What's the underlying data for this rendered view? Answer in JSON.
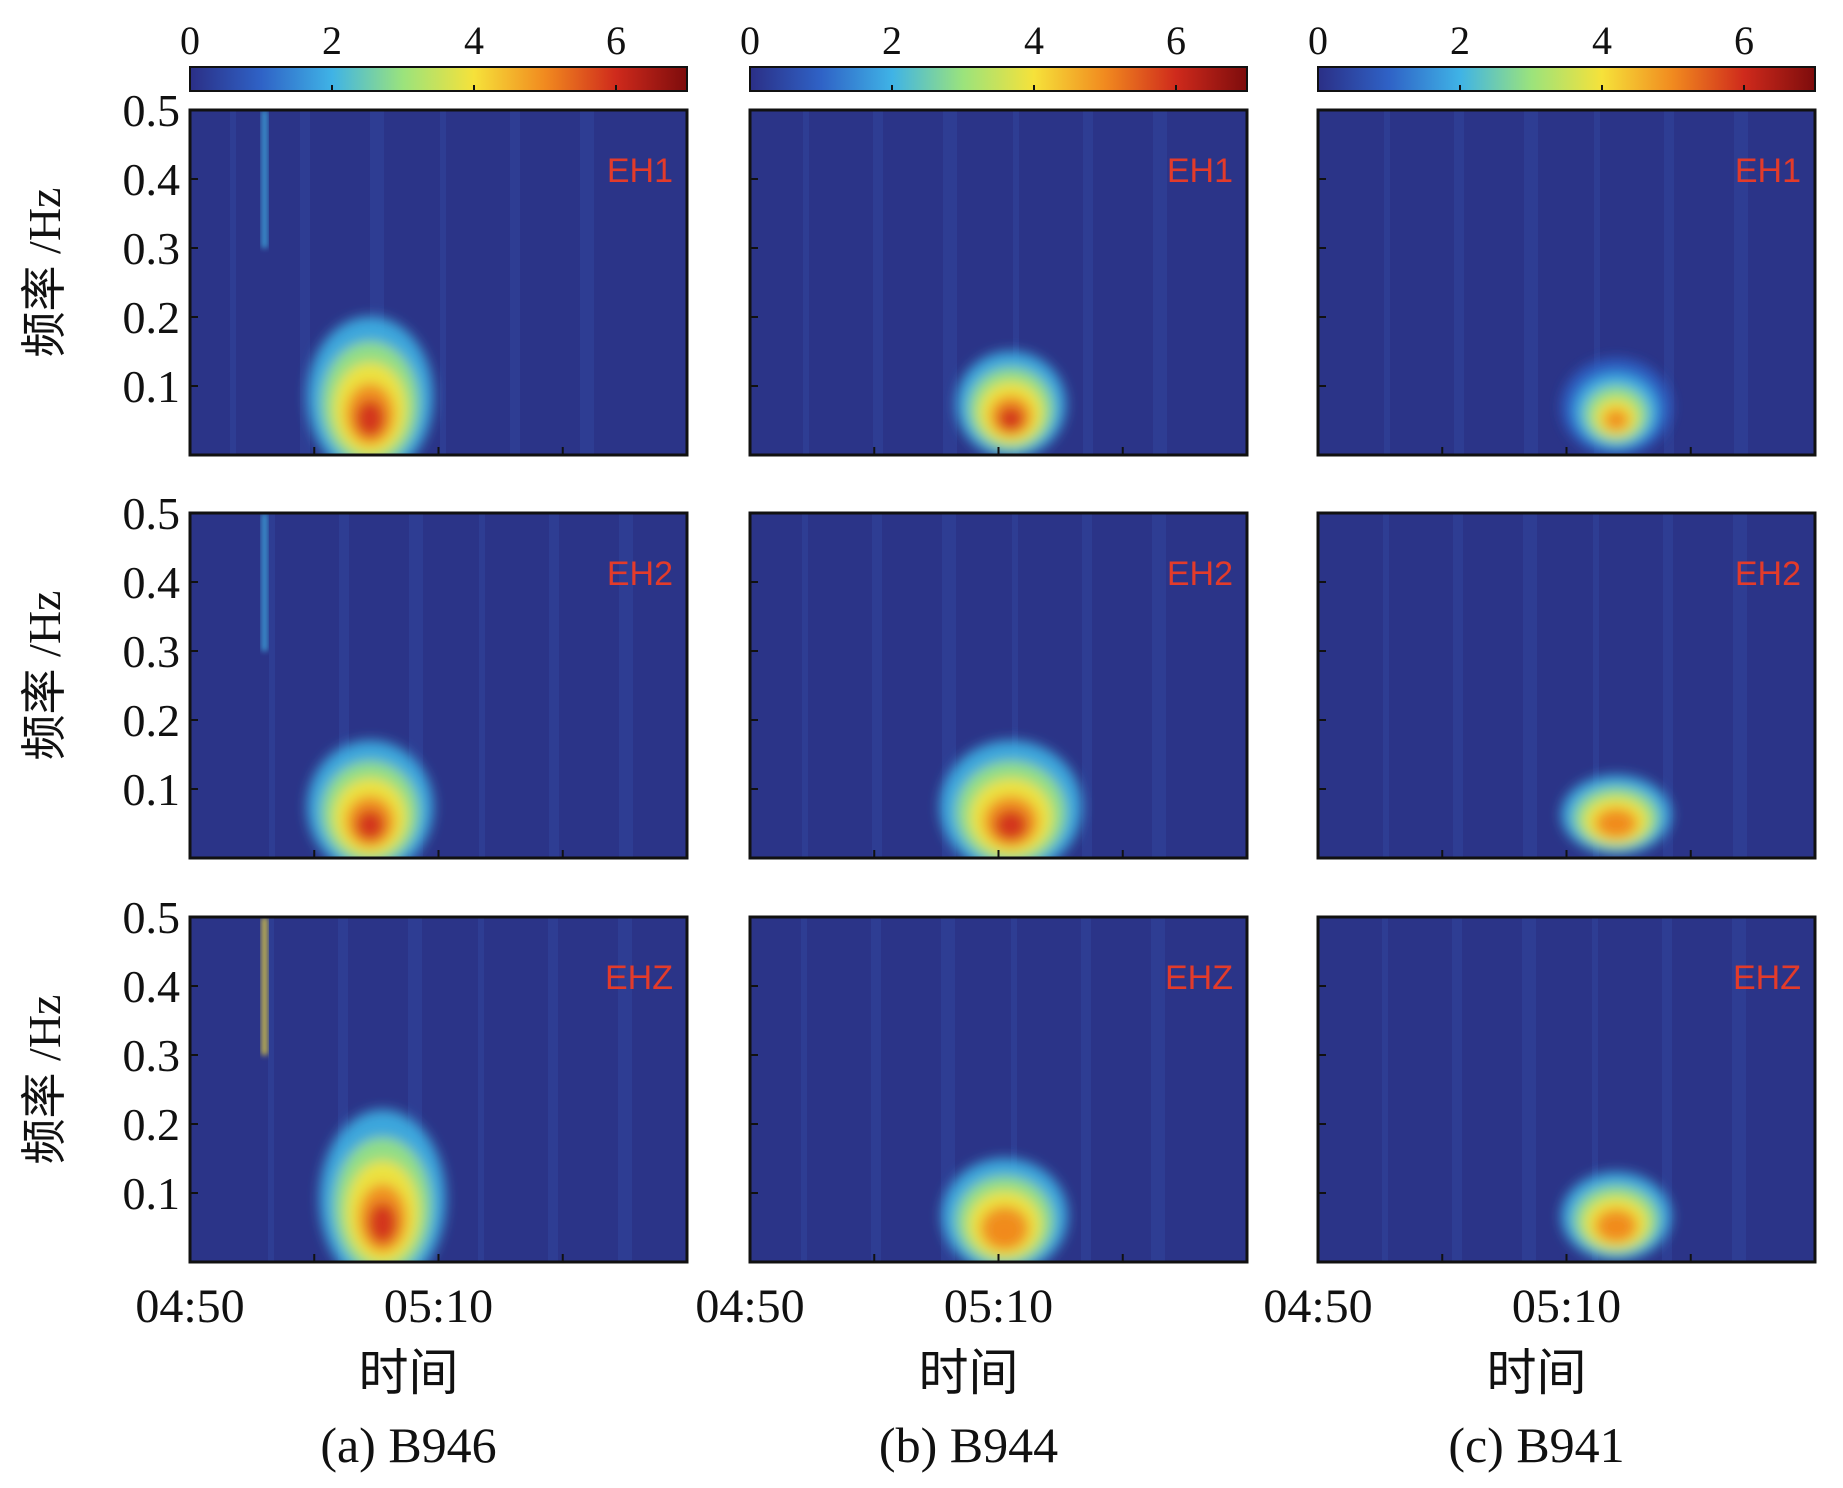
{
  "figure": {
    "columns": [
      {
        "caption": "(a) B946",
        "xlabel": "时间"
      },
      {
        "caption": "(b) B944",
        "xlabel": "时间"
      },
      {
        "caption": "(c) B941",
        "xlabel": "时间"
      }
    ],
    "ylabel": "频率 /Hz",
    "colorbar": {
      "ticks": [
        "0",
        "2",
        "4",
        "6"
      ],
      "range": [
        0,
        7
      ],
      "colormap": "jet",
      "colors": [
        "#2b2f86",
        "#2f62c6",
        "#3fb3e6",
        "#9be37c",
        "#f6e23a",
        "#f18a1f",
        "#cf2a1c",
        "#7d0c0c"
      ]
    },
    "background_color": "#2b3488"
  },
  "chart_data": [
    {
      "type": "heatmap",
      "station": "B946",
      "component": "EH1",
      "x_ticks": [
        "04:50",
        "05:10"
      ],
      "y_ticks": [
        "0.5",
        "0.4",
        "0.3",
        "0.2",
        "0.1"
      ],
      "ylim": [
        0,
        0.5
      ],
      "peak_time": "05:03–05:06",
      "peak_freq_hz": [
        0.03,
        0.18
      ],
      "max_value": 7
    },
    {
      "type": "heatmap",
      "station": "B944",
      "component": "EH1",
      "x_ticks": [
        "04:50",
        "05:10"
      ],
      "y_ticks": [],
      "ylim": [
        0,
        0.5
      ],
      "peak_time": "05:10–05:12",
      "peak_freq_hz": [
        0.04,
        0.13
      ],
      "max_value": 6.5
    },
    {
      "type": "heatmap",
      "station": "B941",
      "component": "EH1",
      "x_ticks": [
        "04:50",
        "05:10"
      ],
      "y_ticks": [],
      "ylim": [
        0,
        0.5
      ],
      "peak_time": "05:13–05:15",
      "peak_freq_hz": [
        0.04,
        0.12
      ],
      "max_value": 5.5
    },
    {
      "type": "heatmap",
      "station": "B946",
      "component": "EH2",
      "x_ticks": [
        "04:50",
        "05:10"
      ],
      "y_ticks": [
        "0.5",
        "0.4",
        "0.3",
        "0.2",
        "0.1"
      ],
      "ylim": [
        0,
        0.5
      ],
      "peak_time": "05:03–05:06",
      "peak_freq_hz": [
        0.03,
        0.15
      ],
      "max_value": 7
    },
    {
      "type": "heatmap",
      "station": "B944",
      "component": "EH2",
      "x_ticks": [
        "04:50",
        "05:10"
      ],
      "y_ticks": [],
      "ylim": [
        0,
        0.5
      ],
      "peak_time": "05:09–05:13",
      "peak_freq_hz": [
        0.03,
        0.15
      ],
      "max_value": 7
    },
    {
      "type": "heatmap",
      "station": "B941",
      "component": "EH2",
      "x_ticks": [
        "04:50",
        "05:10"
      ],
      "y_ticks": [],
      "ylim": [
        0,
        0.5
      ],
      "peak_time": "05:13–05:15",
      "peak_freq_hz": [
        0.04,
        0.1
      ],
      "max_value": 6
    },
    {
      "type": "heatmap",
      "station": "B946",
      "component": "EHZ",
      "x_ticks": [
        "04:50",
        "05:10"
      ],
      "y_ticks": [
        "0.5",
        "0.4",
        "0.3",
        "0.2",
        "0.1"
      ],
      "ylim": [
        0,
        0.5
      ],
      "peak_time": "05:04–05:07",
      "peak_freq_hz": [
        0.03,
        0.2
      ],
      "max_value": 7
    },
    {
      "type": "heatmap",
      "station": "B944",
      "component": "EHZ",
      "x_ticks": [
        "04:50",
        "05:10"
      ],
      "y_ticks": [],
      "ylim": [
        0,
        0.5
      ],
      "peak_time": "05:09–05:12",
      "peak_freq_hz": [
        0.03,
        0.13
      ],
      "max_value": 6
    },
    {
      "type": "heatmap",
      "station": "B941",
      "component": "EHZ",
      "x_ticks": [
        "04:50",
        "05:10"
      ],
      "y_ticks": [],
      "ylim": [
        0,
        0.5
      ],
      "peak_time": "05:13–05:15",
      "peak_freq_hz": [
        0.04,
        0.11
      ],
      "max_value": 6
    }
  ]
}
